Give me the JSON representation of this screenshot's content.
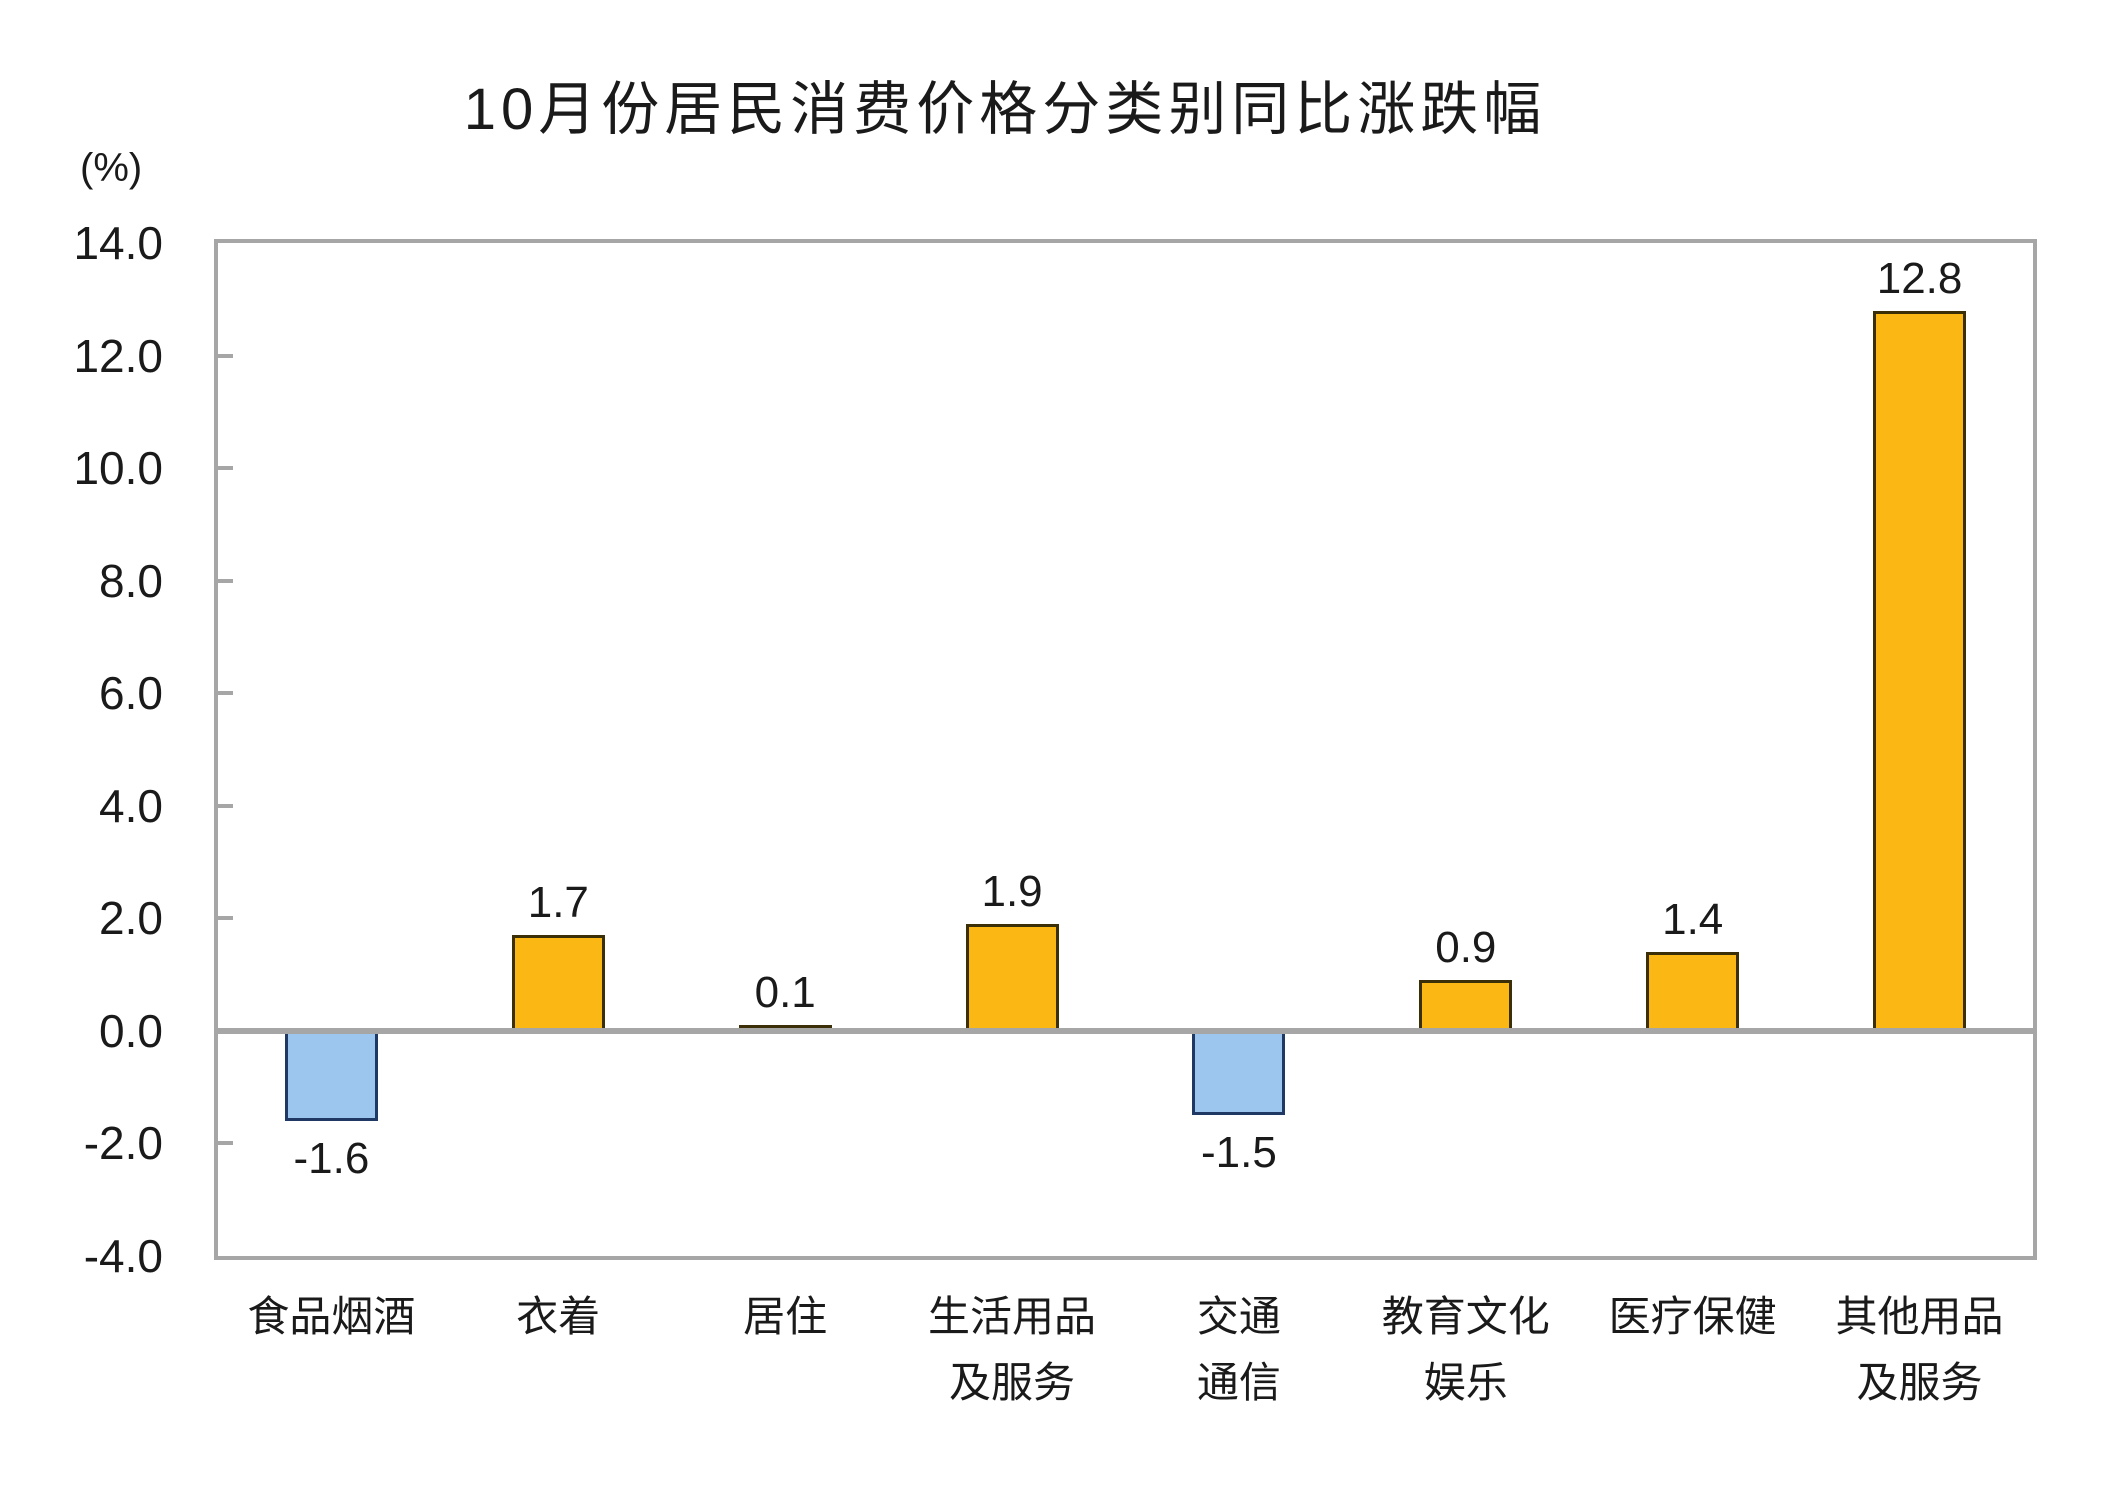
{
  "chart_data": {
    "type": "bar",
    "title": "10月份居民消费价格分类别同比涨跌幅",
    "unit_label": "(%)",
    "categories": [
      "食品烟酒",
      "衣着",
      "居住",
      "生活用品及服务",
      "交通通信",
      "教育文化娱乐",
      "医疗保健",
      "其他用品及服务"
    ],
    "category_label_lines": [
      [
        "食品烟酒"
      ],
      [
        "衣着"
      ],
      [
        "居住"
      ],
      [
        "生活用品",
        "及服务"
      ],
      [
        "交通",
        "通信"
      ],
      [
        "教育文化",
        "娱乐"
      ],
      [
        "医疗保健"
      ],
      [
        "其他用品",
        "及服务"
      ]
    ],
    "values": [
      -1.6,
      1.7,
      0.1,
      1.9,
      -1.5,
      0.9,
      1.4,
      12.8
    ],
    "value_labels": [
      "-1.6",
      "1.7",
      "0.1",
      "1.9",
      "-1.5",
      "0.9",
      "1.4",
      "12.8"
    ],
    "xlabel": "",
    "ylabel": "(%)",
    "ylim": [
      -4.0,
      14.0
    ],
    "y_tick_step": 2.0,
    "y_tick_labels": [
      "14.0",
      "12.0",
      "10.0",
      "8.0",
      "6.0",
      "4.0",
      "2.0",
      "0.0",
      "-2.0",
      "-4.0"
    ],
    "grid": false,
    "legend_position": "none",
    "colors": {
      "positive_fill": "#FBB713",
      "positive_border": "#3B2F07",
      "negative_fill": "#9DC6EE",
      "negative_border": "#1F3864",
      "axis": "#A6A6A6",
      "text": "#000000"
    }
  }
}
